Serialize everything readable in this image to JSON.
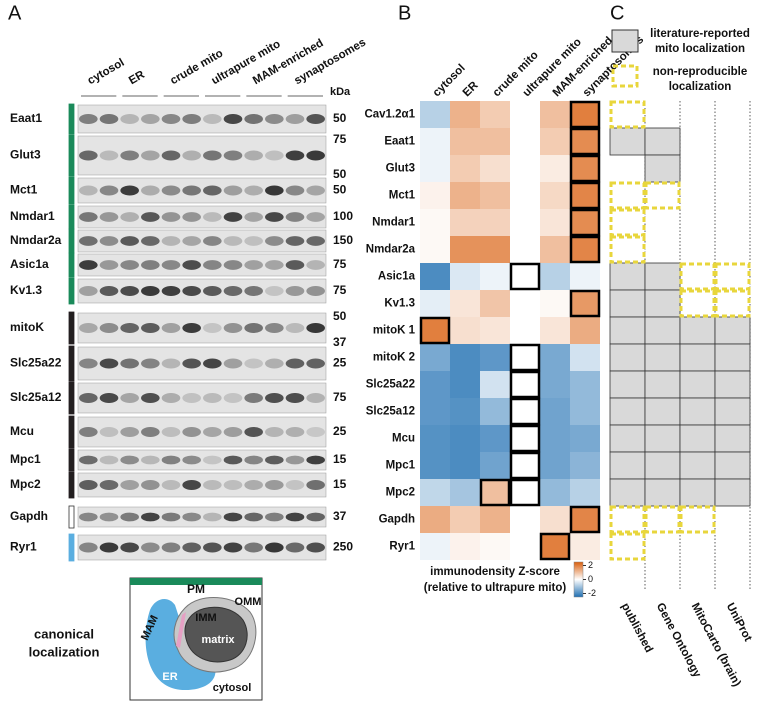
{
  "panels": {
    "a": "A",
    "b": "B",
    "c": "C"
  },
  "blot": {
    "fractions": [
      "cytosol",
      "ER",
      "crude mito",
      "ultrapure mito",
      "MAM-enriched",
      "synaptosomes"
    ],
    "kda_header": "kDa",
    "rows": [
      {
        "name": "Eaat1",
        "kda": [
          50
        ],
        "group_color": "#1a8a5a"
      },
      {
        "name": "Glut3",
        "kda": [
          75,
          50
        ],
        "group_color": "#1a8a5a"
      },
      {
        "name": "Mct1",
        "kda": [
          50
        ],
        "group_color": "#1a8a5a"
      },
      {
        "name": "Nmdar1",
        "kda": [
          100
        ],
        "group_color": "#1a8a5a"
      },
      {
        "name": "Nmdar2a",
        "kda": [
          150
        ],
        "group_color": "#1a8a5a"
      },
      {
        "name": "Asic1a",
        "kda": [
          75
        ],
        "group_color": "#1a8a5a"
      },
      {
        "name": "Kv1.3",
        "kda": [
          75
        ],
        "group_color": "#1a8a5a"
      },
      {
        "name": "mitoK",
        "kda": [
          50,
          37
        ],
        "group_color": "#231f20"
      },
      {
        "name": "Slc25a22",
        "kda": [
          25
        ],
        "group_color": "#231f20"
      },
      {
        "name": "Slc25a12",
        "kda": [
          75
        ],
        "group_color": "#231f20"
      },
      {
        "name": "Mcu",
        "kda": [
          25
        ],
        "group_color": "#231f20"
      },
      {
        "name": "Mpc1",
        "kda": [
          15
        ],
        "group_color": "#231f20"
      },
      {
        "name": "Mpc2",
        "kda": [
          15
        ],
        "group_color": "#231f20"
      },
      {
        "name": "Gapdh",
        "kda": [
          37
        ],
        "group_color": "#ffffff"
      },
      {
        "name": "Ryr1",
        "kda": [
          250
        ],
        "group_color": "#5aaee0"
      }
    ]
  },
  "diagram": {
    "title": [
      "canonical",
      "localization"
    ],
    "labels": {
      "pm": "PM",
      "mam": "MAM",
      "imm": "IMM",
      "omm": "OMM",
      "matrix": "matrix",
      "er": "ER",
      "cytosol": "cytosol"
    }
  },
  "heatmap": {
    "columns": [
      "cytosol",
      "ER",
      "crude mito",
      "ultrapure mito",
      "MAM-enriched",
      "synaptosomes"
    ],
    "rows": [
      "Cav1.2α1",
      "Eaat1",
      "Glut3",
      "Mct1",
      "Nmdar1",
      "Nmdar2a",
      "Asic1a",
      "Kv1.3",
      "mitoK 1",
      "mitoK 2",
      "Slc25a22",
      "Slc25a12",
      "Mcu",
      "Mpc1",
      "Mpc2",
      "Gapdh",
      "Ryr1"
    ],
    "z": [
      [
        -0.8,
        1.2,
        0.8,
        0,
        1.0,
        2.0
      ],
      [
        -0.2,
        1.0,
        1.0,
        0,
        0.8,
        1.8
      ],
      [
        -0.2,
        0.8,
        0.5,
        0,
        0.3,
        1.8
      ],
      [
        0.2,
        1.2,
        1.0,
        0,
        0.6,
        1.9
      ],
      [
        0.1,
        0.7,
        0.7,
        0,
        0.4,
        1.8
      ],
      [
        0.1,
        1.7,
        1.7,
        0,
        1.0,
        1.9
      ],
      [
        -2.0,
        -0.4,
        -0.2,
        0,
        -0.8,
        -0.2
      ],
      [
        -0.3,
        0.4,
        0.9,
        0,
        0.1,
        1.6
      ],
      [
        2.0,
        0.5,
        0.4,
        0,
        0.4,
        1.3
      ],
      [
        -1.5,
        -2.0,
        -1.8,
        0,
        -1.5,
        -0.5
      ],
      [
        -1.8,
        -2.0,
        -0.5,
        0,
        -1.5,
        -1.2
      ],
      [
        -1.8,
        -1.9,
        -1.2,
        0,
        -1.6,
        -1.2
      ],
      [
        -1.9,
        -2.0,
        -1.8,
        0,
        -1.6,
        -1.5
      ],
      [
        -1.9,
        -2.0,
        -1.6,
        0,
        -1.6,
        -1.3
      ],
      [
        -0.7,
        -1.0,
        1.0,
        0,
        -1.2,
        -0.8
      ],
      [
        1.3,
        0.8,
        1.2,
        0,
        0.5,
        1.9
      ],
      [
        -0.2,
        0.2,
        0.1,
        0,
        2.0,
        0.3
      ]
    ],
    "outlined": [
      [
        0,
        5
      ],
      [
        1,
        5
      ],
      [
        2,
        5
      ],
      [
        3,
        5
      ],
      [
        4,
        5
      ],
      [
        5,
        5
      ],
      [
        6,
        3
      ],
      [
        7,
        5
      ],
      [
        8,
        0
      ],
      [
        9,
        3
      ],
      [
        10,
        3
      ],
      [
        11,
        3
      ],
      [
        12,
        3
      ],
      [
        13,
        3
      ],
      [
        14,
        2
      ],
      [
        14,
        3
      ],
      [
        15,
        5
      ],
      [
        16,
        4
      ]
    ],
    "zlim": [
      -2.5,
      2.5
    ],
    "colorbar_ticks": [
      2,
      0,
      -2
    ],
    "colors": {
      "low": "#1f6fb2",
      "mid": "#ffffff",
      "high": "#d95f0e"
    },
    "colorbar_label": [
      "immunodensity Z-score",
      "(relative to ultrapure mito)"
    ]
  },
  "annotation": {
    "columns": [
      "published",
      "Gene Ontology",
      "MitoCarto (brain)",
      "UniProt"
    ],
    "legend": {
      "reported": [
        "literature-reported",
        "mito localization"
      ],
      "nonreproducible": [
        "non-reproducible",
        "localization"
      ]
    },
    "colors": {
      "reported": "#d9d9d9",
      "nonreproducible": "#e8d63c"
    },
    "cells": [
      [
        "nonreproducible",
        null,
        null,
        null
      ],
      [
        "reported",
        "reported",
        null,
        null
      ],
      [
        null,
        "reported",
        null,
        null
      ],
      [
        "nonreproducible",
        "nonreproducible",
        null,
        null
      ],
      [
        "nonreproducible",
        null,
        null,
        null
      ],
      [
        "nonreproducible",
        null,
        null,
        null
      ],
      [
        "reported",
        "reported",
        "nonreproducible",
        "nonreproducible"
      ],
      [
        "reported",
        "reported",
        "nonreproducible",
        "nonreproducible"
      ],
      [
        "reported",
        "reported",
        "reported",
        "reported"
      ],
      [
        "reported",
        "reported",
        "reported",
        "reported"
      ],
      [
        "reported",
        "reported",
        "reported",
        "reported"
      ],
      [
        "reported",
        "reported",
        "reported",
        "reported"
      ],
      [
        "reported",
        "reported",
        "reported",
        "reported"
      ],
      [
        "reported",
        "reported",
        "reported",
        "reported"
      ],
      [
        "reported",
        "reported",
        "reported",
        "reported"
      ],
      [
        "nonreproducible",
        "nonreproducible",
        "nonreproducible",
        null
      ],
      [
        "nonreproducible",
        null,
        null,
        null
      ]
    ]
  }
}
